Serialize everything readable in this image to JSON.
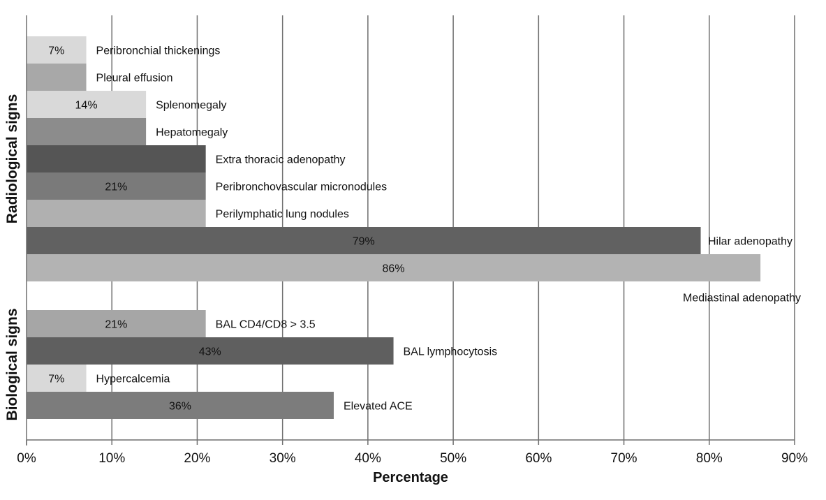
{
  "chart_data": {
    "type": "bar",
    "orientation": "horizontal",
    "title": "",
    "xlabel": "Percentage",
    "ylabel": "",
    "xlim": [
      0,
      90
    ],
    "xticks": [
      0,
      10,
      20,
      30,
      40,
      50,
      60,
      70,
      80,
      90
    ],
    "xtick_labels": [
      "0%",
      "10%",
      "20%",
      "30%",
      "40%",
      "50%",
      "60%",
      "70%",
      "80%",
      "90%"
    ],
    "grid": "vertical",
    "groups": [
      {
        "name": "Radiological signs",
        "bars": [
          {
            "label": "Peribronchial thickenings",
            "value": 7,
            "value_label": "7%",
            "color": "#d9d9d9"
          },
          {
            "label": "Pleural effusion",
            "value": 7,
            "value_label": "",
            "color": "#a8a8a8"
          },
          {
            "label": "Splenomegaly",
            "value": 14,
            "value_label": "14%",
            "color": "#d9d9d9"
          },
          {
            "label": "Hepatomegaly",
            "value": 14,
            "value_label": "",
            "color": "#8c8c8c"
          },
          {
            "label": "Extra thoracic adenopathy",
            "value": 21,
            "value_label": "",
            "color": "#555555"
          },
          {
            "label": "Peribronchovascular micronodules",
            "value": 21,
            "value_label": "21%",
            "color": "#7a7a7a"
          },
          {
            "label": "Perilymphatic lung nodules",
            "value": 21,
            "value_label": "",
            "color": "#b0b0b0"
          },
          {
            "label": "Hilar adenopathy",
            "value": 79,
            "value_label": "79%",
            "color": "#616161"
          },
          {
            "label": "Mediastinal adenopathy",
            "value": 86,
            "value_label": "86%",
            "color": "#b3b3b3"
          }
        ]
      },
      {
        "name": "Biological signs",
        "bars": [
          {
            "label": "BAL CD4/CD8 > 3.5",
            "value": 21,
            "value_label": "21%",
            "color": "#a6a6a6"
          },
          {
            "label": "BAL lymphocytosis",
            "value": 43,
            "value_label": "43%",
            "color": "#5f5f5f"
          },
          {
            "label": "Hypercalcemia",
            "value": 7,
            "value_label": "7%",
            "color": "#d9d9d9"
          },
          {
            "label": "Elevated ACE",
            "value": 36,
            "value_label": "36%",
            "color": "#7c7c7c"
          }
        ]
      }
    ]
  }
}
